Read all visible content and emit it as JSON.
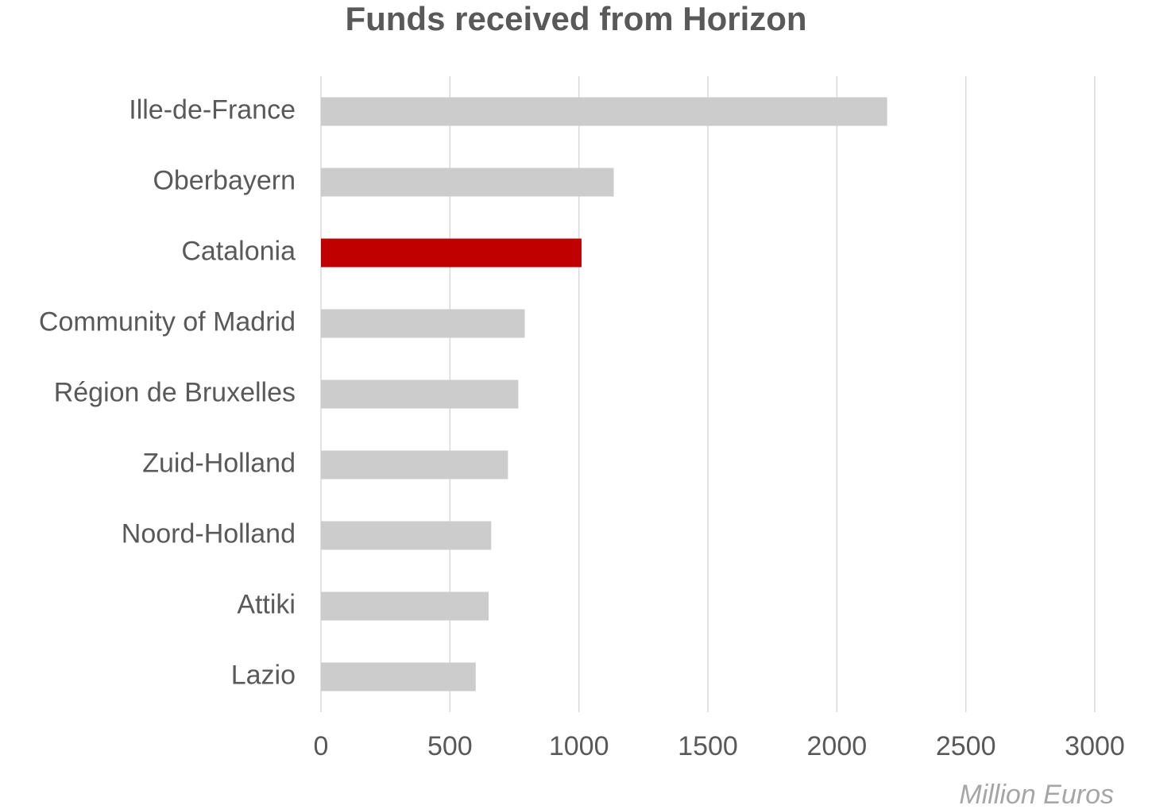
{
  "chart_data": {
    "type": "bar",
    "orientation": "horizontal",
    "title": "Funds received from Horizon",
    "x_label": "Million Euros",
    "categories": [
      "Ille-de-France",
      "Oberbayern",
      "Catalonia",
      "Community of Madrid",
      "Région de Bruxelles",
      "Zuid-Holland",
      "Noord-Holland",
      "Attiki",
      "Lazio"
    ],
    "values": [
      2195,
      1135,
      1010,
      790,
      765,
      725,
      660,
      650,
      600
    ],
    "colors": [
      "#cccccc",
      "#cccccc",
      "#c00000",
      "#cccccc",
      "#cccccc",
      "#cccccc",
      "#cccccc",
      "#cccccc",
      "#cccccc"
    ],
    "xlim": [
      0,
      3000
    ],
    "xticks": [
      0,
      500,
      1000,
      1500,
      2000,
      2500,
      3000
    ],
    "grid": true
  }
}
